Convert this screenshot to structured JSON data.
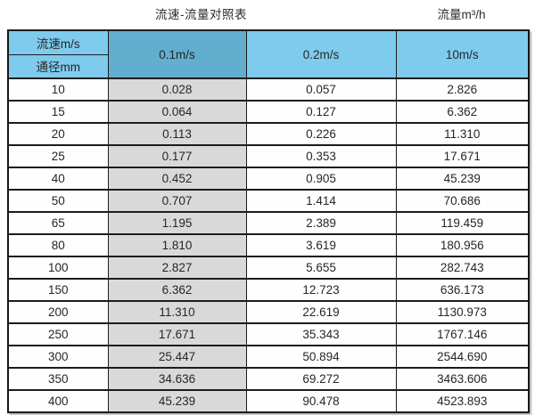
{
  "titles": {
    "main": "流速-流量对照表",
    "unit": "流量m³/h"
  },
  "table_header": {
    "velocity_label": "流速m/s",
    "diameter_label": "通径mm",
    "velocity_columns": [
      "0.1m/s",
      "0.2m/s",
      "10m/s"
    ]
  },
  "colors": {
    "header_light_blue": "#7ecbee",
    "header_dark_blue": "#62aecf",
    "shaded_column_gray": "#d9d9d9",
    "border_dark": "#1c1c1c",
    "cell_background": "#fefefe"
  },
  "chart_data": {
    "type": "table",
    "title": "流速-流量对照表",
    "unit_label": "流量m³/h",
    "columns": [
      "通径mm",
      "0.1m/s",
      "0.2m/s",
      "10m/s"
    ],
    "rows": [
      [
        "10",
        "0.028",
        "0.057",
        "2.826"
      ],
      [
        "15",
        "0.064",
        "0.127",
        "6.362"
      ],
      [
        "20",
        "0.113",
        "0.226",
        "11.310"
      ],
      [
        "25",
        "0.177",
        "0.353",
        "17.671"
      ],
      [
        "40",
        "0.452",
        "0.905",
        "45.239"
      ],
      [
        "50",
        "0.707",
        "1.414",
        "70.686"
      ],
      [
        "65",
        "1.195",
        "2.389",
        "119.459"
      ],
      [
        "80",
        "1.810",
        "3.619",
        "180.956"
      ],
      [
        "100",
        "2.827",
        "5.655",
        "282.743"
      ],
      [
        "150",
        "6.362",
        "12.723",
        "636.173"
      ],
      [
        "200",
        "11.310",
        "22.619",
        "1130.973"
      ],
      [
        "250",
        "17.671",
        "35.343",
        "1767.146"
      ],
      [
        "300",
        "25.447",
        "50.894",
        "2544.690"
      ],
      [
        "350",
        "34.636",
        "69.272",
        "3463.606"
      ],
      [
        "400",
        "45.239",
        "90.478",
        "4523.893"
      ]
    ]
  }
}
